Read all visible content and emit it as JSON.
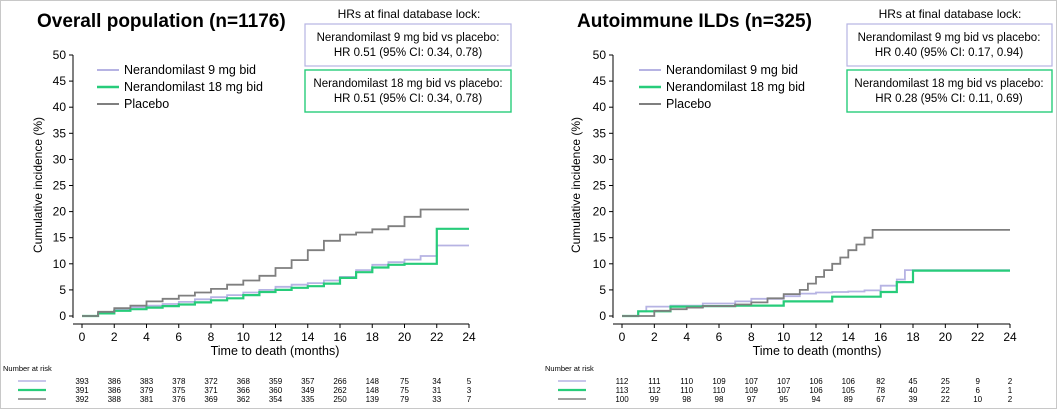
{
  "colors": {
    "nine_mg": "#b6b3e3",
    "eighteen_mg": "#27cc7a",
    "placebo": "#7f7f7f",
    "hr_box_nine": "#b6b3e3",
    "hr_box_eighteen": "#27cc7a",
    "frame": "#c8c8c8"
  },
  "chart_data": [
    {
      "type": "line",
      "step": true,
      "title": "Overall population (n=1176)",
      "xlabel": "Time to death (months)",
      "ylabel": "Cumulative incidence (%)",
      "xlim": [
        0,
        24
      ],
      "ylim": [
        0,
        50
      ],
      "xticks": [
        "0",
        "2",
        "4",
        "6",
        "8",
        "10",
        "12",
        "14",
        "16",
        "18",
        "20",
        "22",
        "24"
      ],
      "yticks": [
        "0",
        "5",
        "10",
        "15",
        "20",
        "25",
        "30",
        "35",
        "40",
        "45",
        "50"
      ],
      "legend": "top-left",
      "hr_title": "HRs at final database lock:",
      "hr_boxes": [
        {
          "line1": "Nerandomilast 9 mg bid vs placebo:",
          "line2": "HR 0.51 (95% CI: 0.34, 0.78)",
          "color_key": "hr_box_nine"
        },
        {
          "line1": "Nerandomilast 18 mg bid vs placebo:",
          "line2": "HR 0.51 (95% CI: 0.34, 0.78)",
          "color_key": "hr_box_eighteen"
        }
      ],
      "series": [
        {
          "name": "Nerandomilast 9 mg bid",
          "color_key": "nine_mg",
          "x": [
            0,
            1,
            2,
            3,
            4,
            5,
            6,
            7,
            8,
            9,
            10,
            11,
            12,
            13,
            14,
            15,
            16,
            17,
            18,
            19,
            20,
            21,
            22,
            24
          ],
          "y": [
            0,
            0.6,
            1.3,
            1.7,
            2.0,
            2.3,
            2.7,
            3.2,
            3.6,
            4.0,
            4.5,
            5.0,
            5.6,
            6.0,
            6.3,
            6.8,
            7.5,
            8.8,
            9.8,
            10.3,
            10.8,
            11.5,
            13.5,
            13.5
          ]
        },
        {
          "name": "Nerandomilast 18 mg bid",
          "color_key": "eighteen_mg",
          "x": [
            0,
            1,
            2,
            3,
            4,
            5,
            6,
            7,
            8,
            9,
            10,
            11,
            12,
            13,
            14,
            15,
            16,
            17,
            18,
            19,
            20,
            21,
            22,
            24
          ],
          "y": [
            0,
            0.5,
            1.0,
            1.3,
            1.6,
            1.9,
            2.2,
            2.6,
            3.0,
            3.4,
            4.0,
            4.6,
            5.0,
            5.4,
            5.7,
            6.2,
            7.3,
            8.4,
            9.3,
            9.8,
            10.0,
            10.0,
            16.7,
            16.7
          ]
        },
        {
          "name": "Placebo",
          "color_key": "placebo",
          "x": [
            0,
            1,
            2,
            3,
            4,
            5,
            6,
            7,
            8,
            9,
            10,
            11,
            12,
            13,
            14,
            15,
            16,
            17,
            18,
            19,
            20,
            21,
            22,
            24
          ],
          "y": [
            0,
            0.8,
            1.5,
            2.0,
            2.8,
            3.3,
            3.9,
            4.5,
            5.2,
            6.0,
            6.8,
            7.7,
            9.2,
            10.7,
            12.6,
            14.4,
            15.6,
            16.0,
            16.6,
            17.2,
            19.0,
            20.4,
            20.4,
            20.4
          ]
        }
      ],
      "risk_table": {
        "title": "Number at risk",
        "time_points": [
          "0",
          "2",
          "4",
          "6",
          "8",
          "10",
          "12",
          "14",
          "16",
          "18",
          "20",
          "22",
          "24"
        ],
        "rows": [
          {
            "color_key": "nine_mg",
            "values": [
              "393",
              "386",
              "383",
              "378",
              "372",
              "368",
              "359",
              "357",
              "266",
              "148",
              "75",
              "34",
              "5"
            ]
          },
          {
            "color_key": "eighteen_mg",
            "values": [
              "391",
              "386",
              "379",
              "375",
              "371",
              "366",
              "360",
              "349",
              "262",
              "148",
              "75",
              "31",
              "3"
            ]
          },
          {
            "color_key": "placebo",
            "values": [
              "392",
              "388",
              "381",
              "376",
              "369",
              "362",
              "354",
              "335",
              "250",
              "139",
              "79",
              "33",
              "7"
            ]
          }
        ]
      }
    },
    {
      "type": "line",
      "step": true,
      "title": "Autoimmune ILDs (n=325)",
      "xlabel": "Time to death (months)",
      "ylabel": "Cumulative incidence (%)",
      "xlim": [
        0,
        24
      ],
      "ylim": [
        0,
        50
      ],
      "xticks": [
        "0",
        "2",
        "4",
        "6",
        "8",
        "10",
        "12",
        "14",
        "16",
        "18",
        "20",
        "22",
        "24"
      ],
      "yticks": [
        "0",
        "5",
        "10",
        "15",
        "20",
        "25",
        "30",
        "35",
        "40",
        "45",
        "50"
      ],
      "legend": "top-left",
      "hr_title": "HRs at final database lock:",
      "hr_boxes": [
        {
          "line1": "Nerandomilast 9 mg bid vs placebo:",
          "line2": "HR 0.40 (95% CI: 0.17, 0.94)",
          "color_key": "hr_box_nine"
        },
        {
          "line1": "Nerandomilast 18 mg bid vs placebo:",
          "line2": "HR 0.28 (95% CI: 0.11, 0.69)",
          "color_key": "hr_box_eighteen"
        }
      ],
      "series": [
        {
          "name": "Nerandomilast 9 mg bid",
          "color_key": "nine_mg",
          "x": [
            0,
            1,
            1.5,
            3,
            5,
            7,
            8,
            10,
            11,
            12,
            13,
            14,
            15,
            16,
            17,
            17.5,
            18,
            24
          ],
          "y": [
            0,
            0.9,
            1.8,
            2.0,
            2.4,
            2.8,
            3.3,
            3.8,
            4.3,
            4.5,
            4.6,
            4.7,
            4.9,
            5.8,
            7.0,
            8.8,
            8.8,
            8.8
          ]
        },
        {
          "name": "Nerandomilast 18 mg bid",
          "color_key": "eighteen_mg",
          "x": [
            0,
            1,
            3,
            5,
            7,
            9,
            10,
            11,
            13,
            15,
            16,
            17,
            18,
            24
          ],
          "y": [
            0,
            0.9,
            1.8,
            1.9,
            2.0,
            2.0,
            2.8,
            2.8,
            3.7,
            3.7,
            4.6,
            6.5,
            8.7,
            8.7
          ]
        },
        {
          "name": "Placebo",
          "color_key": "placebo",
          "x": [
            0,
            2,
            3,
            4,
            5,
            7,
            8,
            9,
            10,
            11,
            11.5,
            12,
            12.5,
            13,
            13.5,
            14,
            14.5,
            15,
            15.5,
            24
          ],
          "y": [
            0,
            1,
            1.3,
            1.6,
            1.9,
            2.2,
            2.6,
            3.4,
            4.2,
            5.0,
            6.2,
            7.5,
            8.8,
            10.0,
            11.2,
            12.6,
            13.7,
            15.0,
            16.5,
            16.5
          ]
        }
      ],
      "risk_table": {
        "title": "Number at risk",
        "time_points": [
          "0",
          "2",
          "4",
          "6",
          "8",
          "10",
          "12",
          "14",
          "16",
          "18",
          "20",
          "22",
          "24"
        ],
        "rows": [
          {
            "color_key": "nine_mg",
            "values": [
              "112",
              "111",
              "110",
              "109",
              "107",
              "107",
              "106",
              "106",
              "82",
              "45",
              "25",
              "9",
              "2"
            ]
          },
          {
            "color_key": "eighteen_mg",
            "values": [
              "113",
              "112",
              "110",
              "110",
              "109",
              "107",
              "106",
              "105",
              "78",
              "40",
              "22",
              "6",
              "1"
            ]
          },
          {
            "color_key": "placebo",
            "values": [
              "100",
              "99",
              "98",
              "98",
              "97",
              "95",
              "94",
              "89",
              "67",
              "39",
              "22",
              "10",
              "2"
            ]
          }
        ]
      }
    }
  ]
}
